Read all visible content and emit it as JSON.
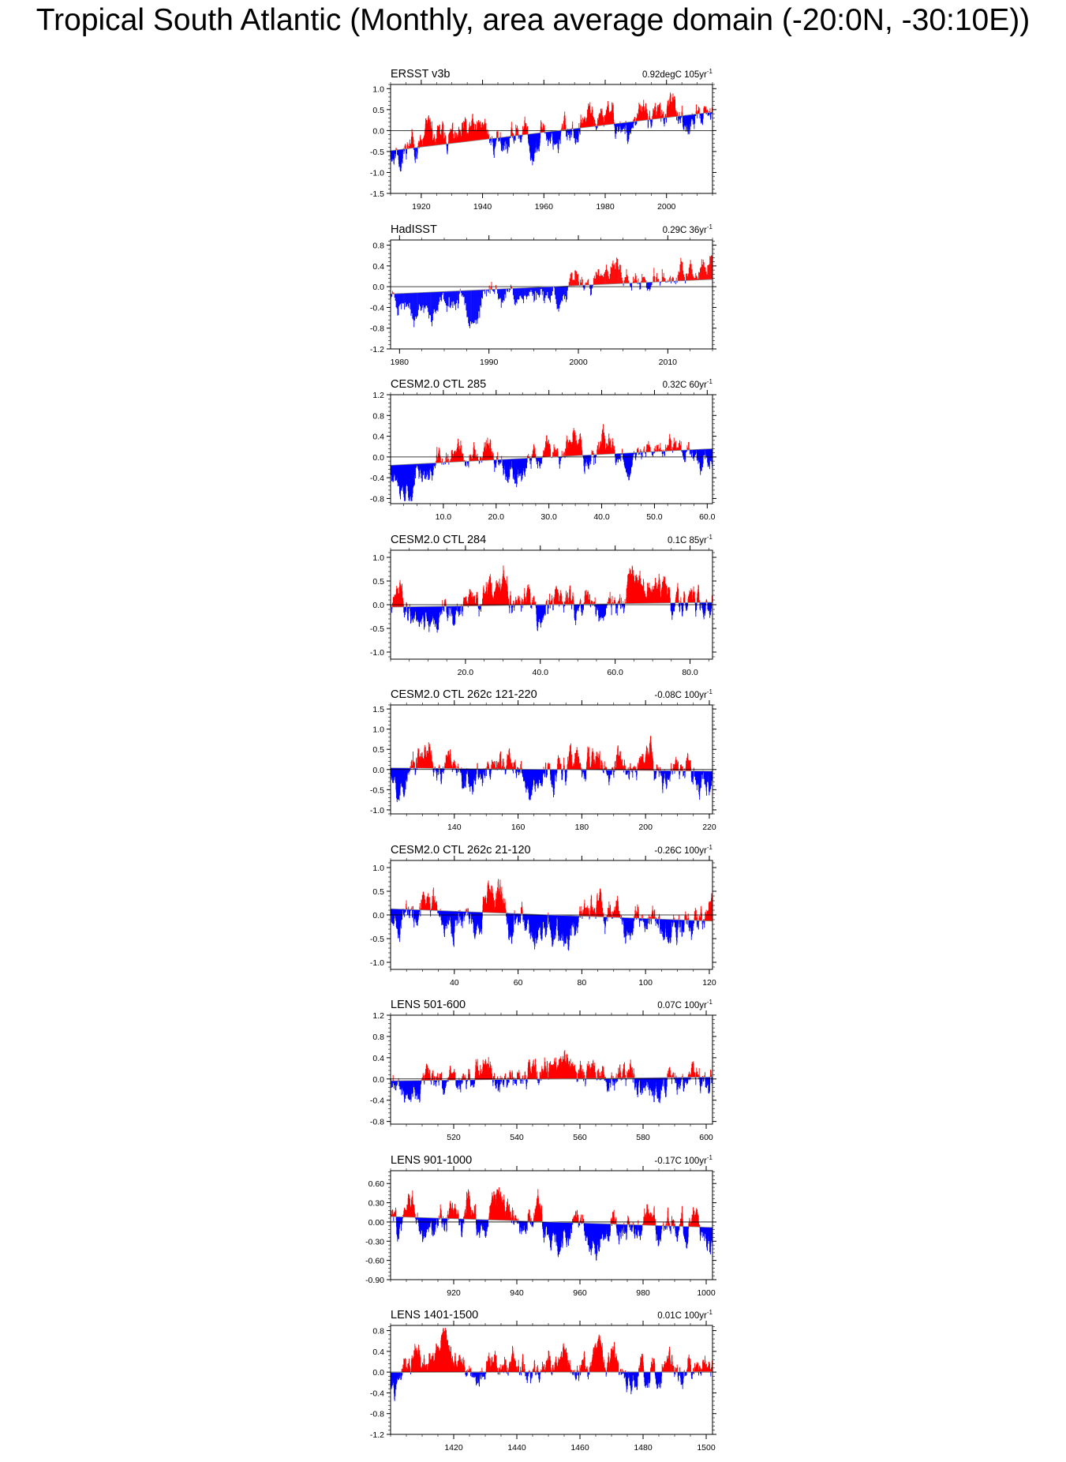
{
  "page_title": "Tropical South Atlantic (Monthly, area average domain (-20:0N, -30:10E))",
  "colors": {
    "positive": "#ff0000",
    "negative": "#0000ff",
    "axis": "#000000",
    "trend": "#888888"
  },
  "chart_data": [
    {
      "type": "bar",
      "title": "ERSST v3b",
      "trend_value": "0.92degC",
      "trend_period": "105yr",
      "trend_unit_sup": "-1",
      "xlim": [
        1910,
        2015
      ],
      "xticks": [
        1920,
        1940,
        1960,
        1980,
        2000
      ],
      "xtick_labels": [
        "1920",
        "1940",
        "1960",
        "1980",
        "2000"
      ],
      "ylim": [
        -1.5,
        1.1
      ],
      "yticks": [
        -1.5,
        -1.0,
        -0.5,
        0.0,
        0.5,
        1.0
      ],
      "ytick_labels": [
        "-1.5",
        "-1.0",
        "-0.5",
        "0.0",
        "0.5",
        "1.0"
      ],
      "baseline": 0.0,
      "trend": [
        [
          1910,
          -0.48
        ],
        [
          2015,
          0.44
        ]
      ],
      "seed": 11,
      "amplitude": 0.5,
      "sample_points": 1260
    },
    {
      "type": "bar",
      "title": "HadISST",
      "trend_value": "0.29C",
      "trend_period": "36yr",
      "trend_unit_sup": "-1",
      "xlim": [
        1979,
        2015
      ],
      "xticks": [
        1980,
        1990,
        2000,
        2010
      ],
      "xtick_labels": [
        "1980",
        "1990",
        "2000",
        "2010"
      ],
      "ylim": [
        -1.2,
        0.9
      ],
      "yticks": [
        -1.2,
        -0.8,
        -0.4,
        0.0,
        0.4,
        0.8
      ],
      "ytick_labels": [
        "-1.2",
        "-0.8",
        "-0.4",
        "0.0",
        "0.4",
        "0.8"
      ],
      "baseline": 0.0,
      "trend": [
        [
          1979,
          -0.14
        ],
        [
          2015,
          0.14
        ]
      ],
      "seed": 23,
      "amplitude": 0.45,
      "sample_points": 432
    },
    {
      "type": "bar",
      "title": "CESM2.0 CTL 285",
      "trend_value": "0.32C",
      "trend_period": "60yr",
      "trend_unit_sup": "-1",
      "xlim": [
        0,
        61
      ],
      "xticks": [
        10,
        20,
        30,
        40,
        50,
        60
      ],
      "xtick_labels": [
        "10.0",
        "20.0",
        "30.0",
        "40.0",
        "50.0",
        "60.0"
      ],
      "ylim": [
        -0.9,
        1.2
      ],
      "yticks": [
        -0.8,
        -0.4,
        0.0,
        0.4,
        0.8,
        1.2
      ],
      "ytick_labels": [
        "-0.8",
        "-0.4",
        "0.0",
        "0.4",
        "0.8",
        "1.2"
      ],
      "baseline": 0.0,
      "trend": [
        [
          0,
          -0.16
        ],
        [
          61,
          0.16
        ]
      ],
      "seed": 37,
      "amplitude": 0.45,
      "sample_points": 732
    },
    {
      "type": "bar",
      "title": "CESM2.0 CTL 284",
      "trend_value": "0.1C",
      "trend_period": "85yr",
      "trend_unit_sup": "-1",
      "xlim": [
        0,
        86
      ],
      "xticks": [
        20,
        40,
        60,
        80
      ],
      "xtick_labels": [
        "20.0",
        "40.0",
        "60.0",
        "80.0"
      ],
      "ylim": [
        -1.15,
        1.15
      ],
      "yticks": [
        -1.0,
        -0.5,
        0.0,
        0.5,
        1.0
      ],
      "ytick_labels": [
        "-1.0",
        "-0.5",
        "0.0",
        "0.5",
        "1.0"
      ],
      "baseline": 0.0,
      "trend": [
        [
          0,
          -0.05
        ],
        [
          86,
          0.05
        ]
      ],
      "seed": 41,
      "amplitude": 0.5,
      "sample_points": 1032
    },
    {
      "type": "bar",
      "title": "CESM2.0 CTL 262c 121-220",
      "trend_value": "-0.08C",
      "trend_period": "100yr",
      "trend_unit_sup": "-1",
      "xlim": [
        120,
        221
      ],
      "xticks": [
        140,
        160,
        180,
        200,
        220
      ],
      "xtick_labels": [
        "140",
        "160",
        "180",
        "200",
        "220"
      ],
      "ylim": [
        -1.1,
        1.6
      ],
      "yticks": [
        -1.0,
        -0.5,
        0.0,
        0.5,
        1.0,
        1.5
      ],
      "ytick_labels": [
        "-1.0",
        "-0.5",
        "0.0",
        "0.5",
        "1.0",
        "1.5"
      ],
      "baseline": 0.0,
      "trend": [
        [
          120,
          0.04
        ],
        [
          221,
          -0.04
        ]
      ],
      "seed": 53,
      "amplitude": 0.55,
      "sample_points": 1212
    },
    {
      "type": "bar",
      "title": "CESM2.0 CTL 262c 21-120",
      "trend_value": "-0.26C",
      "trend_period": "100yr",
      "trend_unit_sup": "-1",
      "xlim": [
        20,
        121
      ],
      "xticks": [
        40,
        60,
        80,
        100,
        120
      ],
      "xtick_labels": [
        "40",
        "60",
        "80",
        "100",
        "120"
      ],
      "ylim": [
        -1.15,
        1.15
      ],
      "yticks": [
        -1.0,
        -0.5,
        0.0,
        0.5,
        1.0
      ],
      "ytick_labels": [
        "-1.0",
        "-0.5",
        "0.0",
        "0.5",
        "1.0"
      ],
      "baseline": 0.0,
      "trend": [
        [
          20,
          0.13
        ],
        [
          121,
          -0.13
        ]
      ],
      "seed": 67,
      "amplitude": 0.5,
      "sample_points": 1212
    },
    {
      "type": "bar",
      "title": "LENS 501-600",
      "trend_value": "0.07C",
      "trend_period": "100yr",
      "trend_unit_sup": "-1",
      "xlim": [
        500,
        602
      ],
      "xticks": [
        520,
        540,
        560,
        580,
        600
      ],
      "xtick_labels": [
        "520",
        "540",
        "560",
        "580",
        "600"
      ],
      "ylim": [
        -0.85,
        1.2
      ],
      "yticks": [
        -0.8,
        -0.4,
        0.0,
        0.4,
        0.8,
        1.2
      ],
      "ytick_labels": [
        "-0.8",
        "-0.4",
        "0.0",
        "0.4",
        "0.8",
        "1.2"
      ],
      "baseline": 0.0,
      "trend": [
        [
          500,
          -0.035
        ],
        [
          602,
          0.035
        ]
      ],
      "seed": 79,
      "amplitude": 0.4,
      "sample_points": 1224
    },
    {
      "type": "bar",
      "title": "LENS 901-1000",
      "trend_value": "-0.17C",
      "trend_period": "100yr",
      "trend_unit_sup": "-1",
      "xlim": [
        900,
        1002
      ],
      "xticks": [
        920,
        940,
        960,
        980,
        1000
      ],
      "xtick_labels": [
        "920",
        "940",
        "960",
        "980",
        "1000"
      ],
      "ylim": [
        -0.9,
        0.8
      ],
      "yticks": [
        -0.9,
        -0.6,
        -0.3,
        0.0,
        0.3,
        0.6
      ],
      "ytick_labels": [
        "-0.90",
        "-0.60",
        "-0.30",
        "0.00",
        "0.30",
        "0.60"
      ],
      "baseline": 0.0,
      "trend": [
        [
          900,
          0.085
        ],
        [
          1002,
          -0.085
        ]
      ],
      "seed": 83,
      "amplitude": 0.35,
      "sample_points": 1224
    },
    {
      "type": "bar",
      "title": "LENS 1401-1500",
      "trend_value": "0.01C",
      "trend_period": "100yr",
      "trend_unit_sup": "-1",
      "xlim": [
        1400,
        1502
      ],
      "xticks": [
        1420,
        1440,
        1460,
        1480,
        1500
      ],
      "xtick_labels": [
        "1420",
        "1440",
        "1460",
        "1480",
        "1500"
      ],
      "ylim": [
        -1.2,
        0.9
      ],
      "yticks": [
        -1.2,
        -0.8,
        -0.4,
        0.0,
        0.4,
        0.8
      ],
      "ytick_labels": [
        "-1.2",
        "-0.8",
        "-0.4",
        "0.0",
        "0.4",
        "0.8"
      ],
      "baseline": 0.0,
      "trend": [
        [
          1400,
          -0.005
        ],
        [
          1502,
          0.005
        ]
      ],
      "seed": 97,
      "amplitude": 0.4,
      "sample_points": 1224
    }
  ]
}
